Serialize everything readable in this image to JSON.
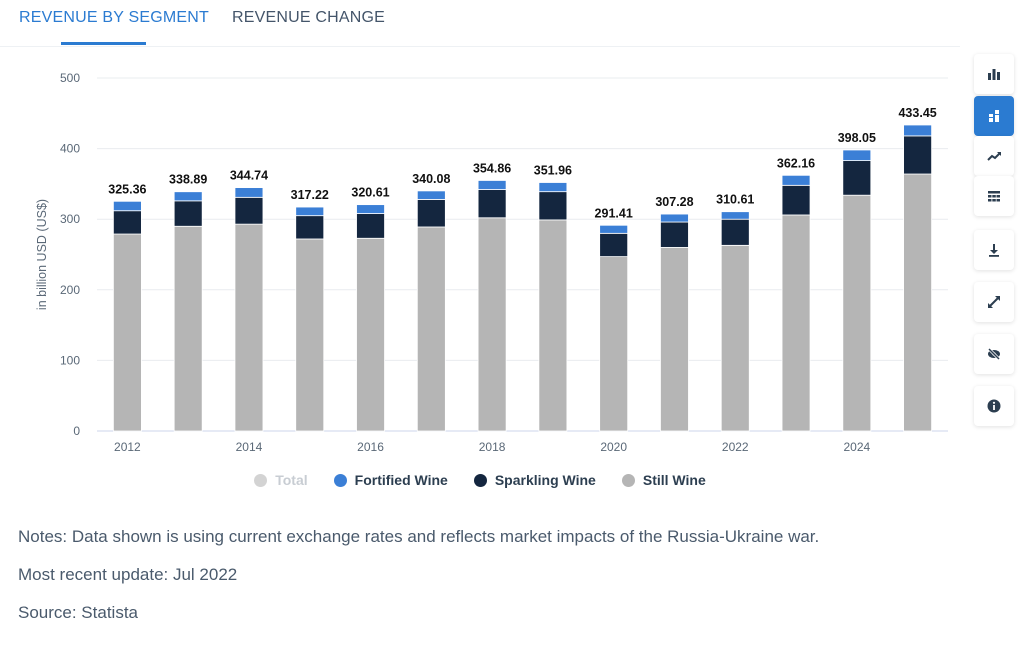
{
  "tabs": [
    {
      "label": "REVENUE BY SEGMENT",
      "active": true
    },
    {
      "label": "REVENUE CHANGE",
      "active": false
    }
  ],
  "toolbar": [
    {
      "icon": "bar-chart-icon",
      "active": false
    },
    {
      "icon": "stacked-chart-icon",
      "active": true
    },
    {
      "icon": "trend-line-icon",
      "active": false
    },
    {
      "icon": "table-icon",
      "active": false
    },
    {
      "icon": "download-icon",
      "active": false
    },
    {
      "icon": "fullscreen-icon",
      "active": false
    },
    {
      "icon": "hide-icon",
      "active": false
    },
    {
      "icon": "info-icon",
      "active": false
    }
  ],
  "colors": {
    "accent": "#2b7bd1",
    "still_wine": "#b5b5b5",
    "sparkling_wine": "#14263f",
    "fortified_wine": "#3b7fd6",
    "total_disabled": "#d3d3d3",
    "grid": "#e9ecef"
  },
  "chart_data": {
    "type": "bar",
    "stacked": true,
    "categories": [
      "2012",
      "2013",
      "2014",
      "2015",
      "2016",
      "2017",
      "2018",
      "2019",
      "2020",
      "2021",
      "2022",
      "2023",
      "2024",
      "2025"
    ],
    "x_tick_labels": [
      "2012",
      "",
      "2014",
      "",
      "2016",
      "",
      "2018",
      "",
      "2020",
      "",
      "2022",
      "",
      "2024",
      ""
    ],
    "series": [
      {
        "name": "Still Wine",
        "color": "#b5b5b5",
        "values": [
          279,
          290,
          293,
          272,
          273,
          289,
          302,
          299,
          247,
          260,
          263,
          306,
          334,
          364
        ]
      },
      {
        "name": "Sparkling Wine",
        "color": "#14263f",
        "values": [
          33,
          36,
          38,
          33,
          35,
          39,
          40,
          40,
          33,
          36,
          37,
          42,
          49,
          54
        ]
      },
      {
        "name": "Fortified Wine",
        "color": "#3b7fd6",
        "values": [
          13.36,
          12.89,
          13.74,
          12.22,
          12.61,
          12.08,
          12.86,
          12.96,
          11.41,
          11.28,
          10.61,
          14.16,
          15.05,
          15.45
        ]
      }
    ],
    "totals": [
      "325.36",
      "338.89",
      "344.74",
      "317.22",
      "320.61",
      "340.08",
      "354.86",
      "351.96",
      "291.41",
      "307.28",
      "310.61",
      "362.16",
      "398.05",
      "433.45"
    ],
    "legend": [
      {
        "name": "Total",
        "color": "#d3d3d3",
        "enabled": false
      },
      {
        "name": "Fortified Wine",
        "color": "#3b7fd6",
        "enabled": true
      },
      {
        "name": "Sparkling Wine",
        "color": "#14263f",
        "enabled": true
      },
      {
        "name": "Still Wine",
        "color": "#b5b5b5",
        "enabled": true
      }
    ],
    "ylabel": "in billion USD (US$)",
    "ylim": [
      0,
      500
    ],
    "yticks": [
      0,
      100,
      200,
      300,
      400,
      500
    ],
    "grid": true,
    "legend_position": "bottom"
  },
  "notes": {
    "line1": "Notes: Data shown is using current exchange rates and reflects market impacts of the Russia-Ukraine war.",
    "line2": "Most recent update: Jul 2022",
    "line3": "Source: Statista"
  }
}
